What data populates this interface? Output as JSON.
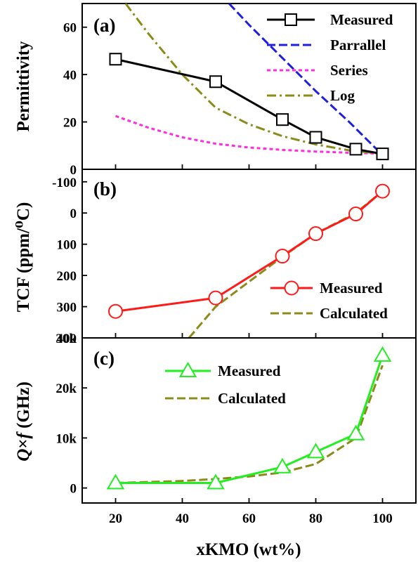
{
  "chart_data": [
    {
      "panel": "(a)",
      "type": "line",
      "ylabel": "Permittivity",
      "xlim": [
        10,
        110
      ],
      "ylim": [
        0,
        70
      ],
      "yticks": [
        0,
        20,
        40,
        60
      ],
      "legend_position": "top-right",
      "series": [
        {
          "name": "Measured",
          "color": "#000000",
          "style": "solid",
          "marker": "square",
          "x": [
            20,
            50,
            70,
            80,
            92,
            100
          ],
          "y": [
            46.5,
            37,
            21,
            13.5,
            8.5,
            6.5
          ]
        },
        {
          "name": "Parrallel",
          "color": "#1f1fe0",
          "style": "dashed",
          "x": [
            54,
            60,
            70,
            80,
            90,
            95,
            100
          ],
          "y": [
            70,
            61,
            47,
            33,
            20,
            13,
            6
          ]
        },
        {
          "name": "Series",
          "color": "#ff2ddf",
          "style": "dotted",
          "x": [
            20,
            30,
            40,
            50,
            60,
            70,
            80,
            90,
            100
          ],
          "y": [
            22.5,
            17.5,
            13.5,
            10.8,
            9.2,
            8.2,
            7.5,
            7.0,
            6.6
          ]
        },
        {
          "name": "Log",
          "color": "#8b8b1a",
          "style": "dashdot",
          "x": [
            23,
            30,
            40,
            50,
            60,
            70,
            80,
            90,
            100
          ],
          "y": [
            70,
            57,
            40,
            26,
            19,
            14,
            10.5,
            8,
            6.5
          ]
        }
      ]
    },
    {
      "panel": "(b)",
      "type": "line",
      "ylabel": "TCF (ppm/⁰C)",
      "xlim": [
        10,
        110
      ],
      "ylim": [
        400,
        -140
      ],
      "y_reversed": true,
      "yticks": [
        -100,
        0,
        100,
        200,
        300,
        400
      ],
      "legend_position": "bottom-right",
      "series": [
        {
          "name": "Measured",
          "color": "#ff1a1a",
          "style": "solid",
          "marker": "circle",
          "x": [
            20,
            50,
            70,
            80,
            92,
            100
          ],
          "y": [
            315,
            272,
            138,
            66,
            3,
            -70
          ]
        },
        {
          "name": "Calculated",
          "color": "#8b8b1a",
          "style": "dashed",
          "x": [
            42,
            50,
            60,
            70,
            80,
            92,
            100
          ],
          "y": [
            400,
            300,
            220,
            140,
            66,
            0,
            -70
          ]
        }
      ]
    },
    {
      "panel": "(c)",
      "type": "line",
      "ylabel_parts": [
        "Q",
        "×",
        "f",
        " (GHz)"
      ],
      "xlabel": "xKMO (wt%)",
      "xlim": [
        10,
        110
      ],
      "ylim": [
        -3000,
        30000
      ],
      "xticks": [
        20,
        40,
        60,
        80,
        100
      ],
      "yticks": [
        0,
        10000,
        20000,
        30000
      ],
      "ytick_labels": [
        "0",
        "10k",
        "20k",
        "30k"
      ],
      "legend_position": "top-left",
      "series": [
        {
          "name": "Measured",
          "color": "#22ee22",
          "style": "solid",
          "marker": "triangle",
          "x": [
            20,
            50,
            70,
            80,
            92,
            100
          ],
          "y": [
            1000,
            1000,
            4200,
            7200,
            10800,
            26500
          ]
        },
        {
          "name": "Calculated",
          "color": "#8b8b1a",
          "style": "dashed",
          "x": [
            20,
            30,
            40,
            50,
            60,
            70,
            80,
            92,
            100
          ],
          "y": [
            1000,
            1200,
            1400,
            1800,
            2300,
            3100,
            4800,
            10000,
            24500
          ]
        }
      ]
    }
  ]
}
